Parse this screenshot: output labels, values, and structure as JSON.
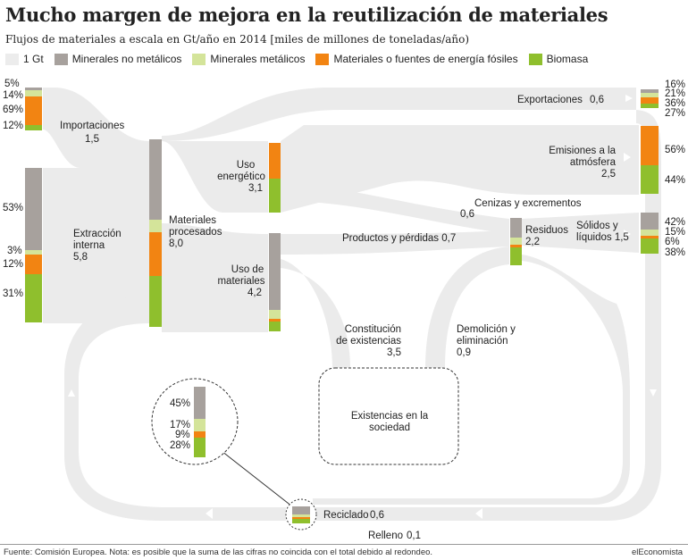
{
  "title": "Mucho margen de mejora en la reutilización de materiales",
  "subtitle": "Flujos de materiales a escala en Gt/año en 2014 [miles de millones de toneladas/año)",
  "legend": [
    {
      "label": "1 Gt",
      "color": "#ececec"
    },
    {
      "label": "Minerales no metálicos",
      "color": "#a7a19d"
    },
    {
      "label": "Minerales metálicos",
      "color": "#d4e49a"
    },
    {
      "label": "Materiales o fuentes de energía fósiles",
      "color": "#f28412"
    },
    {
      "label": "Biomasa",
      "color": "#8fbf2d"
    }
  ],
  "colors": {
    "flow": "#ebebeb",
    "nonmetal": "#a7a19d",
    "metal": "#d4e49a",
    "fossil": "#f28412",
    "biomass": "#8fbf2d",
    "arrow": "#ffffff"
  },
  "import_pcts": {
    "a": "5%",
    "b": "14%",
    "c": "69%",
    "d": "12%"
  },
  "extraction_pcts": {
    "a": "53%",
    "b": "3%",
    "c": "12%",
    "d": "31%"
  },
  "export_pcts": {
    "a": "16%",
    "b": "21%",
    "c": "36%",
    "d": "27%"
  },
  "emissions_pcts": {
    "a": "56%",
    "b": "44%"
  },
  "solids_pcts": {
    "a": "42%",
    "b": "15%",
    "c": "6%",
    "d": "38%"
  },
  "recycle_pcts": {
    "a": "45%",
    "b": "17%",
    "c": "9%",
    "d": "28%"
  },
  "labels": {
    "importaciones": "Importaciones",
    "importaciones_val": "1,5",
    "extraccion_1": "Extracción",
    "extraccion_2": "interna",
    "extraccion_val": "5,8",
    "materiales_1": "Materiales",
    "materiales_2": "procesados",
    "materiales_val": "8,0",
    "uso_energetico_1": "Uso",
    "uso_energetico_2": "energético",
    "uso_energetico_val": "3,1",
    "uso_materiales_1": "Uso de",
    "uso_materiales_2": "materiales",
    "uso_materiales_val": "4,2",
    "exportaciones": "Exportaciones",
    "exportaciones_val": "0,6",
    "emisiones_1": "Emisiones a la",
    "emisiones_2": "atmósfera",
    "emisiones_val": "2,5",
    "cenizas": "Cenizas y excrementos",
    "cenizas_val": "0,6",
    "residuos": "Residuos",
    "residuos_val": "2,2",
    "solidos_1": "Sólidos y",
    "solidos_2": "líquidos 1,5",
    "productos": "Productos y pérdidas 0,7",
    "constitucion_1": "Constitución",
    "constitucion_2": "de existencias",
    "constitucion_val": "3,5",
    "demolicion_1": "Demolición y",
    "demolicion_2": "eliminación",
    "demolicion_val": "0,9",
    "existencias_1": "Existencias en la",
    "existencias_2": "sociedad",
    "reciclado": "Reciclado",
    "reciclado_val": "0,6",
    "relleno": "Relleno",
    "relleno_val": "0,1"
  },
  "footer": {
    "source": "Fuente: Comisión Europea. Nota: es posible que la suma de las cifras no coincida con el total debido al redondeo.",
    "brand": "elEconomista"
  }
}
